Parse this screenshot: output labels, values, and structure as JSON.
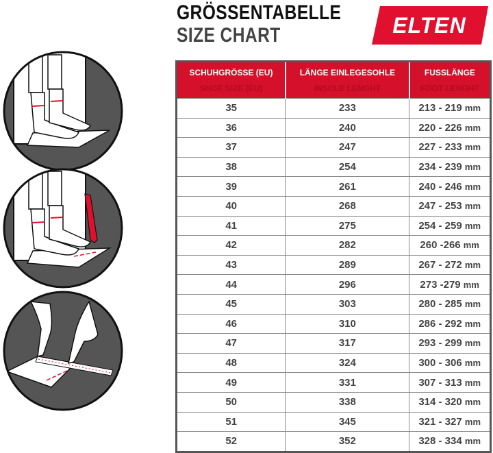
{
  "title": {
    "de": "GRÖSSENTABELLE",
    "en": "SIZE CHART"
  },
  "logo": {
    "text": "ELTEN",
    "color": "#e0102e"
  },
  "colors": {
    "header": "#d4102a",
    "header_sub_text": "#b50a20",
    "text": "#444444"
  },
  "illustrations": [
    "stand-on-paper-against-wall",
    "mark-toe-with-pen",
    "measure-with-ruler"
  ],
  "table": {
    "headers": [
      {
        "de": "SCHUHGRÖSSE (EU)",
        "en": "SHOE SIZE (EU)"
      },
      {
        "de": "LÄNGE EINLEGESOHLE",
        "en": "INSOLE LENGHT"
      },
      {
        "de": "FUSSLÄNGE",
        "en": "FOOT LENGHT"
      }
    ],
    "unit": "mm",
    "rows": [
      [
        "35",
        "233",
        "213 - 219"
      ],
      [
        "36",
        "240",
        "220 - 226"
      ],
      [
        "37",
        "247",
        "227 - 233"
      ],
      [
        "38",
        "254",
        "234 - 239"
      ],
      [
        "39",
        "261",
        "240 - 246"
      ],
      [
        "40",
        "268",
        "247 - 253"
      ],
      [
        "41",
        "275",
        "254 - 259"
      ],
      [
        "42",
        "282",
        "260 -266"
      ],
      [
        "43",
        "289",
        "267 - 272"
      ],
      [
        "44",
        "296",
        "273 -279"
      ],
      [
        "45",
        "303",
        "280 - 285"
      ],
      [
        "46",
        "310",
        "286 - 292"
      ],
      [
        "47",
        "317",
        "293 - 299"
      ],
      [
        "48",
        "324",
        "300 - 306"
      ],
      [
        "49",
        "331",
        "307 - 313"
      ],
      [
        "50",
        "338",
        "314 - 320"
      ],
      [
        "51",
        "345",
        "321 - 327"
      ],
      [
        "52",
        "352",
        "328 - 334"
      ]
    ]
  }
}
